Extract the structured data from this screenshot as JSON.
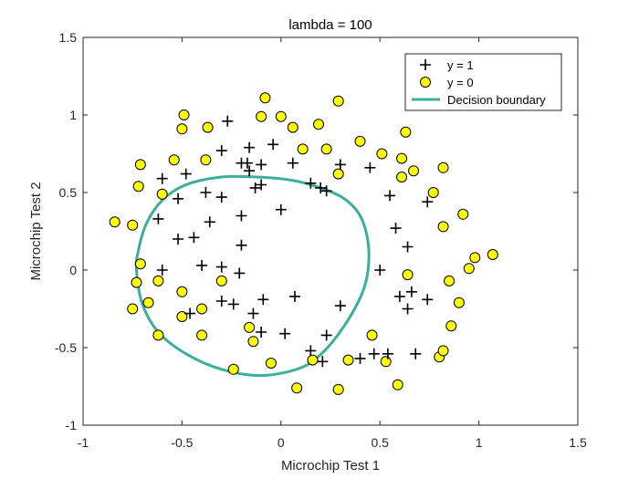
{
  "chart_data": {
    "type": "scatter",
    "title": "lambda = 100",
    "xlabel": "Microchip Test 1",
    "ylabel": "Microchip Test 2",
    "xlim": [
      -1,
      1.5
    ],
    "ylim": [
      -1,
      1.5
    ],
    "xticks": [
      -1,
      -0.5,
      0,
      0.5,
      1,
      1.5
    ],
    "yticks": [
      -1,
      -0.5,
      0,
      0.5,
      1,
      1.5
    ],
    "xtick_labels": [
      "-1",
      "-0.5",
      "0",
      "0.5",
      "1",
      "1.5"
    ],
    "ytick_labels": [
      "-1",
      "-0.5",
      "0",
      "0.5",
      "1",
      "1.5"
    ],
    "grid": false,
    "legend_position": "top-right",
    "colors": {
      "boundary": "#3aaf9c",
      "positive": "#000000",
      "negative_fill": "#ffff00",
      "negative_edge": "#000000"
    },
    "legend": [
      {
        "label": "y = 1",
        "marker": "plus"
      },
      {
        "label": "y = 0",
        "marker": "circle"
      },
      {
        "label": "Decision boundary",
        "marker": "line"
      }
    ],
    "series": [
      {
        "name": "y = 1",
        "marker": "plus",
        "points": [
          [
            -0.27,
            0.96
          ],
          [
            -0.3,
            0.77
          ],
          [
            -0.16,
            0.79
          ],
          [
            -0.04,
            0.81
          ],
          [
            -0.2,
            0.69
          ],
          [
            -0.17,
            0.69
          ],
          [
            -0.16,
            0.64
          ],
          [
            -0.1,
            0.68
          ],
          [
            0.06,
            0.69
          ],
          [
            0.3,
            0.68
          ],
          [
            0.45,
            0.66
          ],
          [
            -0.6,
            0.59
          ],
          [
            -0.48,
            0.62
          ],
          [
            0.15,
            0.56
          ],
          [
            0.2,
            0.53
          ],
          [
            0.23,
            0.51
          ],
          [
            -0.52,
            0.46
          ],
          [
            -0.38,
            0.5
          ],
          [
            -0.3,
            0.47
          ],
          [
            -0.13,
            0.53
          ],
          [
            -0.1,
            0.55
          ],
          [
            -0.62,
            0.33
          ],
          [
            -0.36,
            0.31
          ],
          [
            -0.2,
            0.35
          ],
          [
            0.0,
            0.39
          ],
          [
            0.55,
            0.48
          ],
          [
            0.58,
            0.27
          ],
          [
            0.74,
            0.44
          ],
          [
            -0.52,
            0.2
          ],
          [
            -0.44,
            0.21
          ],
          [
            -0.2,
            0.16
          ],
          [
            0.64,
            0.15
          ],
          [
            -0.6,
            0.0
          ],
          [
            -0.4,
            0.03
          ],
          [
            -0.3,
            0.02
          ],
          [
            -0.21,
            -0.02
          ],
          [
            0.5,
            0.0
          ],
          [
            -0.3,
            -0.2
          ],
          [
            -0.24,
            -0.22
          ],
          [
            -0.09,
            -0.19
          ],
          [
            0.07,
            -0.17
          ],
          [
            0.3,
            -0.23
          ],
          [
            0.6,
            -0.17
          ],
          [
            0.66,
            -0.14
          ],
          [
            0.74,
            -0.19
          ],
          [
            -0.46,
            -0.28
          ],
          [
            -0.14,
            -0.28
          ],
          [
            0.64,
            -0.25
          ],
          [
            -0.1,
            -0.4
          ],
          [
            0.02,
            -0.41
          ],
          [
            0.23,
            -0.42
          ],
          [
            0.15,
            -0.52
          ],
          [
            0.21,
            -0.59
          ],
          [
            0.4,
            -0.57
          ],
          [
            0.47,
            -0.54
          ],
          [
            0.54,
            -0.54
          ],
          [
            0.68,
            -0.54
          ]
        ]
      },
      {
        "name": "y = 0",
        "marker": "circle",
        "points": [
          [
            -0.08,
            1.11
          ],
          [
            0.29,
            1.09
          ],
          [
            -0.49,
            1.0
          ],
          [
            -0.1,
            0.99
          ],
          [
            0.0,
            0.99
          ],
          [
            0.06,
            0.92
          ],
          [
            0.19,
            0.94
          ],
          [
            -0.5,
            0.91
          ],
          [
            -0.37,
            0.92
          ],
          [
            0.4,
            0.83
          ],
          [
            0.63,
            0.89
          ],
          [
            -0.54,
            0.71
          ],
          [
            -0.38,
            0.71
          ],
          [
            0.11,
            0.78
          ],
          [
            0.23,
            0.78
          ],
          [
            0.51,
            0.75
          ],
          [
            0.61,
            0.72
          ],
          [
            0.67,
            0.64
          ],
          [
            0.82,
            0.66
          ],
          [
            -0.71,
            0.68
          ],
          [
            -0.72,
            0.54
          ],
          [
            -0.6,
            0.49
          ],
          [
            0.29,
            0.62
          ],
          [
            0.61,
            0.6
          ],
          [
            0.77,
            0.5
          ],
          [
            -0.84,
            0.31
          ],
          [
            -0.75,
            0.29
          ],
          [
            0.92,
            0.36
          ],
          [
            0.82,
            0.28
          ],
          [
            0.98,
            0.08
          ],
          [
            1.07,
            0.1
          ],
          [
            0.95,
            0.01
          ],
          [
            -0.71,
            0.04
          ],
          [
            0.64,
            -0.03
          ],
          [
            -0.73,
            -0.08
          ],
          [
            -0.62,
            -0.07
          ],
          [
            0.85,
            -0.07
          ],
          [
            -0.5,
            -0.14
          ],
          [
            -0.67,
            -0.21
          ],
          [
            -0.3,
            -0.07
          ],
          [
            0.9,
            -0.21
          ],
          [
            -0.75,
            -0.25
          ],
          [
            -0.4,
            -0.25
          ],
          [
            0.86,
            -0.36
          ],
          [
            -0.5,
            -0.3
          ],
          [
            -0.16,
            -0.37
          ],
          [
            -0.62,
            -0.42
          ],
          [
            -0.4,
            -0.42
          ],
          [
            -0.14,
            -0.46
          ],
          [
            0.46,
            -0.42
          ],
          [
            0.16,
            -0.58
          ],
          [
            0.34,
            -0.58
          ],
          [
            -0.24,
            -0.64
          ],
          [
            -0.05,
            -0.6
          ],
          [
            0.53,
            -0.59
          ],
          [
            0.8,
            -0.56
          ],
          [
            0.82,
            -0.52
          ],
          [
            0.08,
            -0.76
          ],
          [
            0.29,
            -0.77
          ],
          [
            0.59,
            -0.74
          ]
        ]
      },
      {
        "name": "Decision boundary",
        "marker": "line",
        "closed": true,
        "points": [
          [
            -0.73,
            0.0
          ],
          [
            -0.72,
            0.13
          ],
          [
            -0.68,
            0.3
          ],
          [
            -0.6,
            0.45
          ],
          [
            -0.48,
            0.55
          ],
          [
            -0.3,
            0.6
          ],
          [
            -0.12,
            0.6
          ],
          [
            0.05,
            0.58
          ],
          [
            0.2,
            0.53
          ],
          [
            0.32,
            0.46
          ],
          [
            0.4,
            0.35
          ],
          [
            0.44,
            0.18
          ],
          [
            0.44,
            0.0
          ],
          [
            0.41,
            -0.15
          ],
          [
            0.33,
            -0.34
          ],
          [
            0.22,
            -0.52
          ],
          [
            0.1,
            -0.63
          ],
          [
            -0.1,
            -0.68
          ],
          [
            -0.3,
            -0.64
          ],
          [
            -0.48,
            -0.54
          ],
          [
            -0.62,
            -0.4
          ],
          [
            -0.7,
            -0.22
          ]
        ]
      }
    ]
  }
}
